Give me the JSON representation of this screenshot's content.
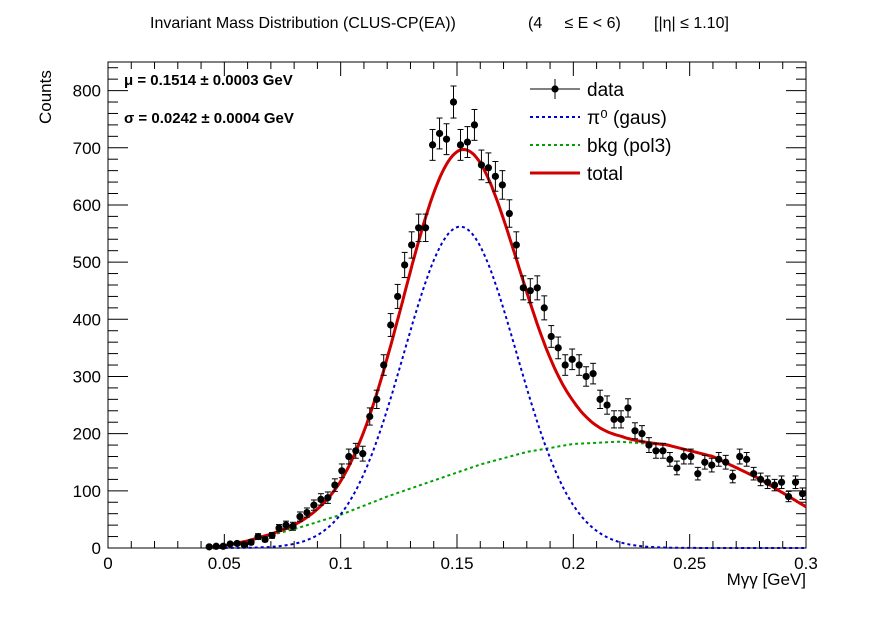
{
  "title": {
    "main": "Invariant Mass Distribution (CLUS-CP(EA))",
    "range_e": "(4     ≤ E < 6)",
    "range_eta": "[|η| ≤ 1.10]"
  },
  "params": {
    "mu": "μ = 0.1514 ± 0.0003 GeV",
    "sigma": "σ = 0.0242 ± 0.0004 GeV"
  },
  "colors": {
    "data": "#000000",
    "signal": "#0000cc",
    "bkg": "#00a000",
    "total": "#d00000"
  },
  "chart_data": {
    "type": "scatter",
    "xlabel": "Mγγ  [GeV]",
    "ylabel": "Counts",
    "xlim": [
      0,
      0.3
    ],
    "ylim": [
      0,
      850
    ],
    "xticks": [
      "0",
      "0.05",
      "0.1",
      "0.15",
      "0.2",
      "0.25",
      "0.3"
    ],
    "yticks": [
      "0",
      "100",
      "200",
      "300",
      "400",
      "500",
      "600",
      "700",
      "800"
    ],
    "grid": false,
    "legend_position": "top-right",
    "legend": [
      {
        "key": "data",
        "label": "data",
        "style": "marker"
      },
      {
        "key": "signal",
        "label": "π⁰ (gaus)",
        "style": "dotted"
      },
      {
        "key": "bkg",
        "label": "bkg (pol3)",
        "style": "dotted"
      },
      {
        "key": "total",
        "label": "total",
        "style": "solid"
      }
    ],
    "data": {
      "name": "data",
      "x": [
        0.0435,
        0.0465,
        0.0495,
        0.0525,
        0.0555,
        0.0585,
        0.0615,
        0.0645,
        0.0675,
        0.0705,
        0.0735,
        0.0765,
        0.0795,
        0.0825,
        0.0855,
        0.0885,
        0.0915,
        0.0945,
        0.0975,
        0.1005,
        0.1035,
        0.1065,
        0.1095,
        0.1125,
        0.1155,
        0.1185,
        0.1215,
        0.1245,
        0.1275,
        0.1305,
        0.1335,
        0.1365,
        0.1395,
        0.1425,
        0.1455,
        0.1485,
        0.1515,
        0.1545,
        0.1575,
        0.1605,
        0.1635,
        0.1665,
        0.1695,
        0.1725,
        0.1755,
        0.1785,
        0.1815,
        0.1845,
        0.1875,
        0.1905,
        0.1935,
        0.1965,
        0.1995,
        0.2025,
        0.2055,
        0.2085,
        0.2115,
        0.2145,
        0.2175,
        0.2205,
        0.2235,
        0.2265,
        0.2295,
        0.2325,
        0.2355,
        0.2385,
        0.2415,
        0.2445,
        0.2475,
        0.2505,
        0.2535,
        0.2565,
        0.2595,
        0.2625,
        0.2655,
        0.2685,
        0.2715,
        0.2745,
        0.2775,
        0.2805,
        0.2835,
        0.2865,
        0.2895,
        0.2925,
        0.2955,
        0.2985
      ],
      "y": [
        2,
        3,
        3,
        7,
        8,
        6,
        10,
        20,
        15,
        22,
        35,
        40,
        38,
        55,
        62,
        75,
        85,
        88,
        110,
        135,
        160,
        170,
        165,
        230,
        260,
        320,
        390,
        440,
        495,
        530,
        560,
        560,
        705,
        725,
        715,
        780,
        705,
        710,
        740,
        670,
        665,
        650,
        635,
        585,
        530,
        455,
        450,
        455,
        420,
        370,
        350,
        320,
        330,
        320,
        300,
        305,
        260,
        250,
        225,
        225,
        245,
        205,
        200,
        180,
        170,
        170,
        155,
        140,
        160,
        160,
        130,
        150,
        145,
        155,
        150,
        125,
        160,
        155,
        130,
        120,
        115,
        110,
        115,
        90,
        115,
        95
      ],
      "yerr": [
        2,
        2,
        2,
        3,
        3,
        3,
        4,
        5,
        4,
        5,
        6,
        7,
        7,
        8,
        8,
        9,
        10,
        10,
        11,
        12,
        13,
        13,
        13,
        15,
        16,
        18,
        20,
        21,
        22,
        23,
        24,
        24,
        27,
        27,
        27,
        28,
        27,
        27,
        27,
        26,
        26,
        26,
        25,
        24,
        23,
        21,
        21,
        21,
        21,
        19,
        19,
        18,
        18,
        18,
        17,
        18,
        16,
        16,
        15,
        15,
        16,
        14,
        14,
        13,
        13,
        13,
        12,
        12,
        13,
        13,
        11,
        12,
        12,
        12,
        12,
        11,
        13,
        12,
        11,
        11,
        11,
        10,
        11,
        9,
        11,
        10
      ]
    },
    "fit": {
      "signal": {
        "amplitude": 562,
        "mean": 0.1514,
        "sigma": 0.0242,
        "display_range": [
          0.045,
          0.3
        ]
      },
      "bkg": {
        "x": [
          0.045,
          0.06,
          0.08,
          0.1,
          0.12,
          0.14,
          0.16,
          0.18,
          0.2,
          0.22,
          0.24,
          0.26,
          0.28,
          0.3
        ],
        "y": [
          0,
          12,
          33,
          58,
          90,
          118,
          146,
          168,
          182,
          186,
          180,
          160,
          121,
          72
        ]
      }
    }
  }
}
